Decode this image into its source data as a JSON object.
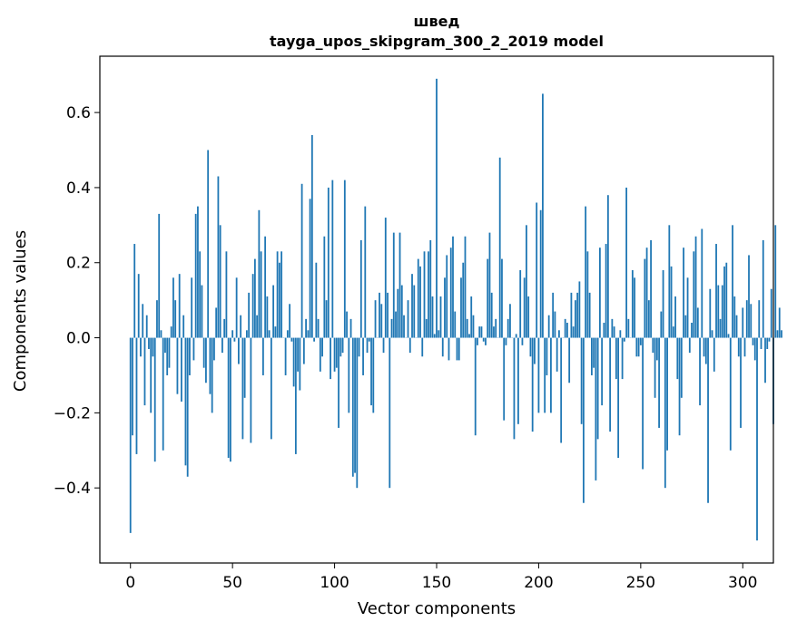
{
  "chart_data": {
    "type": "bar",
    "title": "швед",
    "subtitle": "tayga_upos_skipgram_300_2_2019 model",
    "xlabel": "Vector components",
    "ylabel": "Components values",
    "xlim": [
      -15,
      315
    ],
    "ylim": [
      -0.6,
      0.75
    ],
    "xticks": [
      0,
      50,
      100,
      150,
      200,
      250,
      300
    ],
    "yticks": [
      -0.4,
      -0.2,
      0.0,
      0.2,
      0.4,
      0.6
    ],
    "ytick_labels": [
      "−0.4",
      "−0.2",
      "0.0",
      "0.2",
      "0.4",
      "0.6"
    ],
    "xtick_labels": [
      "0",
      "50",
      "100",
      "150",
      "200",
      "250",
      "300"
    ],
    "grid": false,
    "bar_color": "#1f77b4",
    "series": [
      {
        "values": [
          -0.52,
          -0.26,
          0.25,
          -0.31,
          0.17,
          -0.05,
          0.09,
          -0.18,
          0.06,
          -0.03,
          -0.2,
          -0.05,
          -0.33,
          0.1,
          0.33,
          0.02,
          -0.3,
          -0.04,
          -0.1,
          -0.08,
          0.03,
          0.16,
          0.1,
          -0.15,
          0.17,
          -0.17,
          0.06,
          -0.34,
          -0.37,
          -0.1,
          0.16,
          -0.06,
          0.33,
          0.35,
          0.23,
          0.14,
          -0.08,
          -0.12,
          0.5,
          -0.15,
          -0.2,
          -0.06,
          0.08,
          0.43,
          0.3,
          -0.04,
          0.05,
          0.23,
          -0.32,
          -0.33,
          0.02,
          -0.01,
          0.16,
          -0.07,
          0.06,
          -0.27,
          -0.16,
          0.02,
          0.12,
          -0.28,
          0.17,
          0.21,
          0.06,
          0.34,
          0.23,
          -0.1,
          0.27,
          0.11,
          0.02,
          -0.27,
          0.14,
          0.03,
          0.23,
          0.2,
          0.23,
          0.0,
          -0.1,
          0.02,
          0.09,
          -0.01,
          -0.13,
          -0.31,
          -0.09,
          -0.14,
          0.41,
          -0.07,
          0.05,
          0.02,
          0.37,
          0.54,
          -0.01,
          0.2,
          0.05,
          -0.09,
          -0.05,
          0.27,
          0.1,
          0.4,
          -0.11,
          0.42,
          -0.09,
          -0.08,
          -0.24,
          -0.05,
          -0.04,
          0.42,
          0.07,
          -0.2,
          0.05,
          -0.37,
          -0.36,
          -0.4,
          -0.05,
          0.26,
          -0.1,
          0.35,
          -0.04,
          -0.01,
          -0.18,
          -0.2,
          0.1,
          0.0,
          0.12,
          0.09,
          -0.04,
          0.32,
          0.12,
          -0.4,
          0.05,
          0.28,
          0.07,
          0.13,
          0.28,
          0.14,
          0.06,
          0.0,
          0.1,
          -0.04,
          0.17,
          0.14,
          0.0,
          0.21,
          0.19,
          -0.05,
          0.23,
          0.05,
          0.23,
          0.26,
          0.11,
          0.01,
          0.69,
          0.02,
          0.11,
          -0.05,
          0.16,
          0.22,
          -0.06,
          0.24,
          0.27,
          0.07,
          -0.06,
          -0.06,
          0.16,
          0.2,
          0.27,
          0.05,
          0.01,
          0.11,
          0.06,
          -0.26,
          -0.02,
          0.03,
          0.03,
          -0.01,
          -0.02,
          0.21,
          0.28,
          0.12,
          0.03,
          0.05,
          0.0,
          0.48,
          0.21,
          -0.22,
          -0.02,
          0.05,
          0.09,
          0.0,
          -0.27,
          0.01,
          -0.23,
          0.18,
          -0.02,
          0.16,
          0.3,
          0.11,
          -0.05,
          -0.25,
          -0.07,
          0.36,
          -0.2,
          0.34,
          0.65,
          -0.2,
          -0.1,
          0.06,
          -0.2,
          0.12,
          0.07,
          -0.09,
          0.02,
          -0.28,
          0.0,
          0.05,
          0.04,
          -0.12,
          0.12,
          0.03,
          0.1,
          0.12,
          0.15,
          -0.23,
          -0.44,
          0.35,
          0.23,
          0.12,
          -0.1,
          -0.08,
          -0.38,
          -0.27,
          0.24,
          -0.18,
          0.04,
          0.25,
          0.38,
          -0.25,
          0.05,
          0.03,
          -0.11,
          -0.32,
          0.02,
          -0.11,
          -0.01,
          0.4,
          0.05,
          0.0,
          0.18,
          0.16,
          -0.05,
          -0.05,
          -0.02,
          -0.35,
          0.21,
          0.24,
          0.1,
          0.26,
          -0.04,
          -0.16,
          -0.06,
          -0.24,
          0.07,
          0.18,
          -0.4,
          -0.3,
          0.3,
          0.19,
          0.03,
          0.11,
          -0.11,
          -0.26,
          -0.16,
          0.24,
          0.06,
          0.16,
          -0.04,
          0.04,
          0.23,
          0.27,
          0.08,
          -0.18,
          0.29,
          -0.05,
          -0.07,
          -0.44,
          0.13,
          0.02,
          -0.09,
          0.25,
          0.14,
          0.05,
          0.14,
          0.19,
          0.2,
          0.01,
          -0.3,
          0.3,
          0.11,
          0.06,
          -0.05,
          -0.24,
          0.08,
          -0.05,
          0.1,
          0.22,
          0.09,
          -0.02,
          -0.06,
          -0.54,
          0.1,
          -0.03,
          0.26,
          -0.12,
          -0.03,
          -0.01,
          0.13,
          -0.23,
          0.3,
          0.02,
          0.08,
          0.02
        ]
      }
    ]
  }
}
